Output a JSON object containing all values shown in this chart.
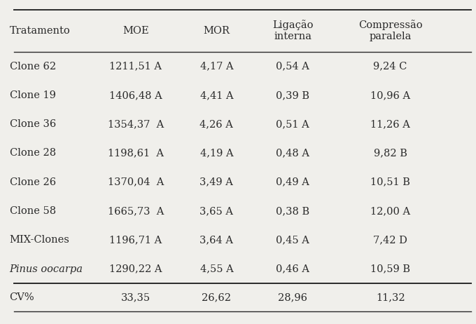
{
  "headers": [
    "Tratamento",
    "MOE",
    "MOR",
    "Ligação\ninterna",
    "Compressão\nparalela"
  ],
  "rows": [
    [
      "Clone 62",
      "1211,51 A",
      "4,17 A",
      "0,54 A",
      "9,24 C"
    ],
    [
      "Clone 19",
      "1406,48 A",
      "4,41 A",
      "0,39 B",
      "10,96 A"
    ],
    [
      "Clone 36",
      "1354,37  A",
      "4,26 A",
      "0,51 A",
      "11,26 A"
    ],
    [
      "Clone 28",
      "1198,61  A",
      "4,19 A",
      "0,48 A",
      "9,82 B"
    ],
    [
      "Clone 26",
      "1370,04  A",
      "3,49 A",
      "0,49 A",
      "10,51 B"
    ],
    [
      "Clone 58",
      "1665,73  A",
      "3,65 A",
      "0,38 B",
      "12,00 A"
    ],
    [
      "MIX-Clones",
      "1196,71 A",
      "3,64 A",
      "0,45 A",
      "7,42 D"
    ],
    [
      "Pinus oocarpa",
      "1290,22 A",
      "4,55 A",
      "0,46 A",
      "10,59 B"
    ]
  ],
  "cv_row": [
    "CV%",
    "33,35",
    "26,62",
    "28,96",
    "11,32"
  ],
  "italic_rows": [
    7
  ],
  "bg_color": "#f0efeb",
  "text_color": "#2a2a2a",
  "fontsize": 10.5,
  "fig_width": 6.8,
  "fig_height": 4.62
}
